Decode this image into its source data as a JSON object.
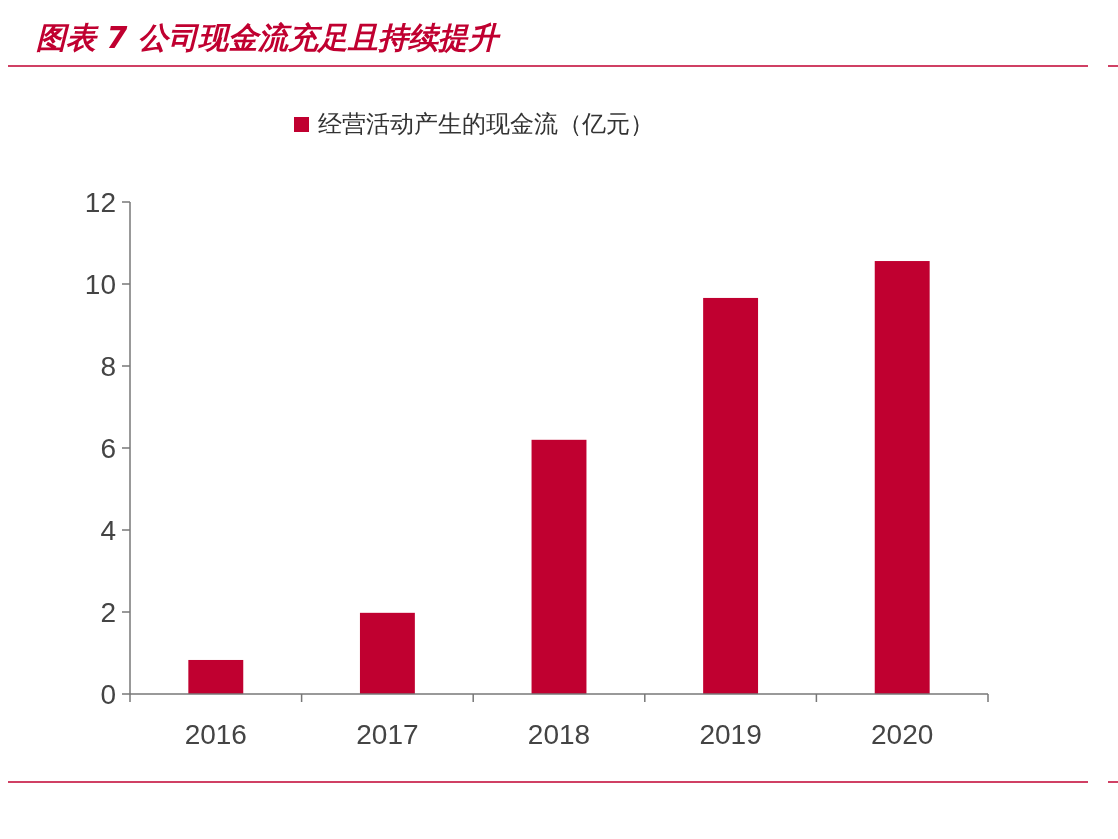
{
  "chart_data": {
    "type": "bar",
    "title": "图表 7 公司现金流充足且持续提升",
    "categories": [
      "2016",
      "2017",
      "2018",
      "2019",
      "2020"
    ],
    "series": [
      {
        "name": "经营活动产生的现金流（亿元）",
        "color": "#c00030",
        "values": [
          0.83,
          1.98,
          6.2,
          9.66,
          10.56
        ]
      }
    ],
    "ylim": [
      0,
      12
    ],
    "yticks": [
      0,
      2,
      4,
      6,
      8,
      10,
      12
    ],
    "grid": false,
    "legend": "top"
  }
}
